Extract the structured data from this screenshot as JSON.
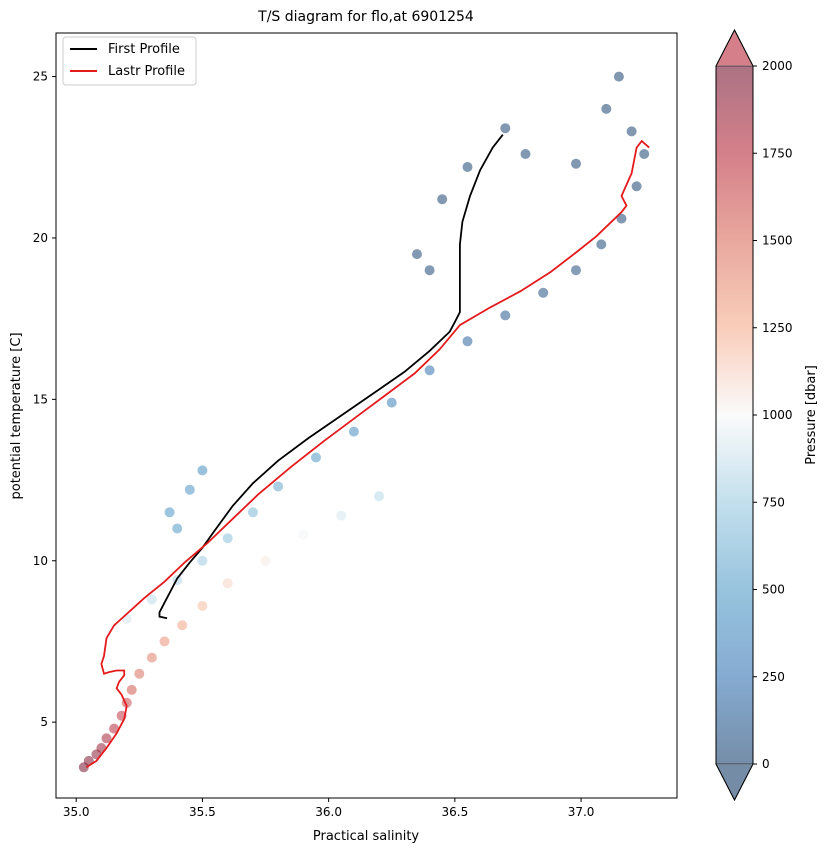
{
  "chart_data": {
    "type": "scatter",
    "title": "T/S diagram for flo,at 6901254",
    "xlabel": "Practical salinity",
    "ylabel": "potential temperature [C]",
    "xlim": [
      34.92,
      37.38
    ],
    "ylim": [
      2.65,
      26.35
    ],
    "xticks": [
      "35.0",
      "35.5",
      "36.0",
      "36.5",
      "37.0"
    ],
    "xtick_values": [
      35.0,
      35.5,
      36.0,
      36.5,
      37.0
    ],
    "yticks": [
      "5",
      "10",
      "15",
      "20",
      "25"
    ],
    "ytick_values": [
      5,
      10,
      15,
      20,
      25
    ],
    "legend_position": "top-left",
    "grid": false,
    "colorbar": {
      "label": "Pressure [dbar]",
      "colormap": "RdBu_r",
      "min": 0,
      "max": 2000,
      "ticks": [
        "0",
        "250",
        "500",
        "750",
        "1000",
        "1250",
        "1500",
        "1750",
        "2000"
      ],
      "tick_values": [
        0,
        250,
        500,
        750,
        1000,
        1250,
        1500,
        1750,
        2000
      ],
      "extend": "both"
    },
    "series": [
      {
        "name": "First Profile",
        "color": "#000000",
        "points": [
          [
            35.36,
            8.22
          ],
          [
            35.33,
            8.27
          ],
          [
            35.33,
            8.4
          ],
          [
            35.35,
            8.7
          ],
          [
            35.37,
            9.0
          ],
          [
            35.4,
            9.45
          ],
          [
            35.45,
            9.95
          ],
          [
            35.5,
            10.4
          ],
          [
            35.55,
            10.95
          ],
          [
            35.62,
            11.7
          ],
          [
            35.7,
            12.4
          ],
          [
            35.8,
            13.1
          ],
          [
            35.92,
            13.8
          ],
          [
            36.05,
            14.5
          ],
          [
            36.18,
            15.2
          ],
          [
            36.3,
            15.85
          ],
          [
            36.4,
            16.5
          ],
          [
            36.48,
            17.1
          ],
          [
            36.5,
            17.4
          ],
          [
            36.52,
            17.7
          ],
          [
            36.52,
            18.3
          ],
          [
            36.52,
            19.2
          ],
          [
            36.52,
            19.8
          ],
          [
            36.53,
            20.5
          ],
          [
            36.56,
            21.3
          ],
          [
            36.6,
            22.1
          ],
          [
            36.65,
            22.8
          ],
          [
            36.69,
            23.2
          ]
        ]
      },
      {
        "name": "Lastr Profile",
        "color": "#e41a1c",
        "points": [
          [
            35.04,
            3.6
          ],
          [
            35.08,
            3.8
          ],
          [
            35.12,
            4.2
          ],
          [
            35.16,
            4.65
          ],
          [
            35.19,
            5.1
          ],
          [
            35.2,
            5.5
          ],
          [
            35.18,
            5.85
          ],
          [
            35.16,
            6.05
          ],
          [
            35.17,
            6.25
          ],
          [
            35.19,
            6.45
          ],
          [
            35.19,
            6.6
          ],
          [
            35.16,
            6.6
          ],
          [
            35.13,
            6.55
          ],
          [
            35.11,
            6.5
          ],
          [
            35.1,
            6.8
          ],
          [
            35.11,
            7.05
          ],
          [
            35.12,
            7.6
          ],
          [
            35.15,
            8.0
          ],
          [
            35.2,
            8.35
          ],
          [
            35.27,
            8.85
          ],
          [
            35.35,
            9.35
          ],
          [
            35.43,
            9.95
          ],
          [
            35.52,
            10.55
          ],
          [
            35.62,
            11.3
          ],
          [
            35.72,
            12.05
          ],
          [
            35.85,
            12.9
          ],
          [
            35.98,
            13.7
          ],
          [
            36.1,
            14.4
          ],
          [
            36.22,
            15.1
          ],
          [
            36.34,
            15.8
          ],
          [
            36.44,
            16.55
          ],
          [
            36.52,
            17.3
          ],
          [
            36.64,
            17.85
          ],
          [
            36.76,
            18.35
          ],
          [
            36.88,
            18.95
          ],
          [
            36.98,
            19.55
          ],
          [
            37.06,
            20.05
          ],
          [
            37.12,
            20.5
          ],
          [
            37.16,
            20.8
          ],
          [
            37.18,
            21.0
          ],
          [
            37.16,
            21.3
          ],
          [
            37.18,
            21.65
          ],
          [
            37.2,
            22.0
          ],
          [
            37.21,
            22.4
          ],
          [
            37.22,
            22.8
          ],
          [
            37.24,
            23.0
          ],
          [
            37.27,
            22.8
          ]
        ]
      },
      {
        "name": "",
        "kind": "scatter_envelope",
        "marker": "o",
        "alpha": 0.5,
        "points_spi": [
          [
            35.03,
            3.6,
            1990
          ],
          [
            35.05,
            3.8,
            1960
          ],
          [
            35.08,
            4.0,
            1920
          ],
          [
            35.1,
            4.2,
            1880
          ],
          [
            35.12,
            4.5,
            1820
          ],
          [
            35.15,
            4.8,
            1760
          ],
          [
            35.18,
            5.2,
            1700
          ],
          [
            35.2,
            5.6,
            1640
          ],
          [
            35.22,
            6.0,
            1580
          ],
          [
            35.25,
            6.5,
            1500
          ],
          [
            35.3,
            7.0,
            1420
          ],
          [
            35.35,
            7.5,
            1350
          ],
          [
            35.42,
            8.0,
            1280
          ],
          [
            35.5,
            8.6,
            1200
          ],
          [
            35.6,
            9.3,
            1120
          ],
          [
            35.75,
            10.0,
            1050
          ],
          [
            35.9,
            10.8,
            980
          ],
          [
            36.05,
            11.4,
            900
          ],
          [
            36.2,
            12.0,
            830
          ],
          [
            35.2,
            8.2,
            900
          ],
          [
            35.3,
            8.8,
            850
          ],
          [
            35.4,
            9.4,
            800
          ],
          [
            35.5,
            10.0,
            760
          ],
          [
            35.6,
            10.7,
            700
          ],
          [
            35.7,
            11.5,
            640
          ],
          [
            35.8,
            12.3,
            560
          ],
          [
            35.95,
            13.2,
            480
          ],
          [
            36.1,
            14.0,
            400
          ],
          [
            36.25,
            14.9,
            320
          ],
          [
            36.4,
            15.9,
            240
          ],
          [
            36.55,
            16.8,
            170
          ],
          [
            36.7,
            17.6,
            120
          ],
          [
            36.85,
            18.3,
            80
          ],
          [
            36.98,
            19.0,
            50
          ],
          [
            37.08,
            19.8,
            30
          ],
          [
            37.16,
            20.6,
            20
          ],
          [
            37.22,
            21.6,
            10
          ],
          [
            37.25,
            22.6,
            5
          ],
          [
            37.15,
            25.0,
            2
          ],
          [
            37.1,
            24.0,
            3
          ],
          [
            37.2,
            23.3,
            4
          ],
          [
            36.98,
            22.3,
            8
          ],
          [
            36.78,
            22.6,
            10
          ],
          [
            36.7,
            23.4,
            6
          ],
          [
            36.55,
            22.2,
            12
          ],
          [
            36.45,
            21.2,
            15
          ],
          [
            36.35,
            19.5,
            20
          ],
          [
            36.4,
            19.0,
            25
          ],
          [
            35.5,
            12.8,
            420
          ],
          [
            35.45,
            12.2,
            440
          ],
          [
            35.37,
            11.5,
            460
          ],
          [
            35.4,
            11.0,
            480
          ]
        ]
      }
    ]
  }
}
